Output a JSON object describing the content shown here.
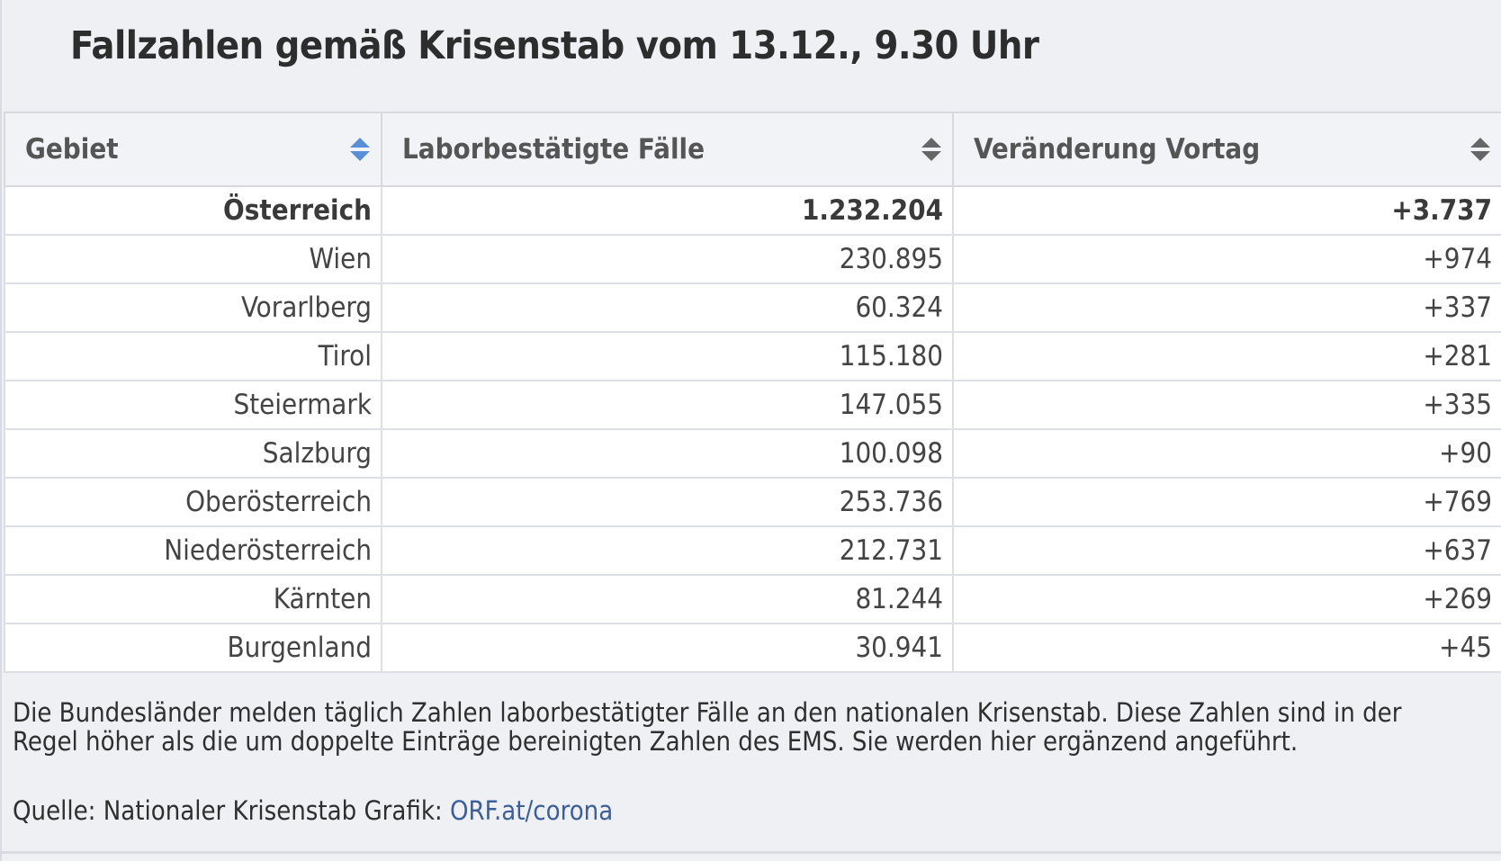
{
  "title": "Fallzahlen gemäß Krisenstab vom 13.12., 9.30 Uhr",
  "table": {
    "headers": [
      {
        "label": "Gebiet",
        "sort_icon": "sort-icon-active"
      },
      {
        "label": "Laborbestätigte Fälle",
        "sort_icon": "sort-icon"
      },
      {
        "label": "Veränderung Vortag",
        "sort_icon": "sort-icon"
      }
    ],
    "rows": [
      {
        "gebiet": "Österreich",
        "faelle": "1.232.204",
        "veraenderung": "+3.737"
      },
      {
        "gebiet": "Wien",
        "faelle": "230.895",
        "veraenderung": "+974"
      },
      {
        "gebiet": "Vorarlberg",
        "faelle": "60.324",
        "veraenderung": "+337"
      },
      {
        "gebiet": "Tirol",
        "faelle": "115.180",
        "veraenderung": "+281"
      },
      {
        "gebiet": "Steiermark",
        "faelle": "147.055",
        "veraenderung": "+335"
      },
      {
        "gebiet": "Salzburg",
        "faelle": "100.098",
        "veraenderung": "+90"
      },
      {
        "gebiet": "Oberösterreich",
        "faelle": "253.736",
        "veraenderung": "+769"
      },
      {
        "gebiet": "Niederösterreich",
        "faelle": "212.731",
        "veraenderung": "+637"
      },
      {
        "gebiet": "Kärnten",
        "faelle": "81.244",
        "veraenderung": "+269"
      },
      {
        "gebiet": "Burgenland",
        "faelle": "30.941",
        "veraenderung": "+45"
      }
    ]
  },
  "notes": "Die Bundesländer melden täglich Zahlen laborbestätigter Fälle an den nationalen Krisenstab. Diese Zahlen sind in der Regel höher als die um doppelte Einträge bereinigten Zahlen des EMS. Sie werden hier ergänzend angeführt.",
  "source": {
    "prefix": "Quelle: Nationaler Krisenstab Grafik: ",
    "link_text": "ORF.at/corona"
  },
  "colors": {
    "background": "#eef0f4",
    "link": "#3c5e9a",
    "sort_active": "#5a8fd8"
  }
}
